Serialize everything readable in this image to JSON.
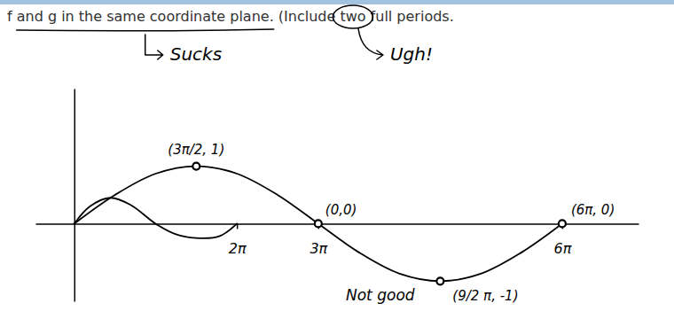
{
  "chart_data": {
    "type": "line",
    "title": "f and g in the same coordinate plane. (Include two full periods.",
    "xlim": [
      -1.5,
      21.8
    ],
    "ylim": [
      -1.35,
      2.35
    ],
    "xticks": [
      {
        "value": 6.283,
        "label": "2π"
      },
      {
        "value": 9.425,
        "label": "3π"
      },
      {
        "value": 18.85,
        "label": "6π"
      }
    ],
    "yticks": [],
    "tick_labels": "x",
    "grid": false,
    "series": [
      {
        "type": "line",
        "color": "#000000",
        "line_style": "solid",
        "x": [
          0,
          1.571,
          3.142,
          4.712,
          6.283,
          7.854,
          9.425,
          10.996,
          12.566,
          14.137,
          15.708,
          17.279,
          18.85
        ],
        "values": [
          0,
          0.5,
          0.87,
          1,
          0.87,
          0.5,
          0,
          -0.5,
          -0.87,
          -1,
          -0.87,
          -0.5,
          0
        ]
      },
      {
        "type": "line",
        "color": "#000000",
        "line_style": "solid",
        "x": [
          0,
          0.6,
          1.4,
          2.2,
          3.14,
          3.9,
          4.7,
          5.6,
          6.283
        ],
        "values": [
          0,
          0.3,
          0.45,
          0.32,
          0,
          -0.18,
          -0.25,
          -0.22,
          0
        ]
      },
      {
        "type": "scatter",
        "color": "#000000",
        "marker": "circle",
        "x": [
          4.712,
          9.425,
          14.137,
          18.85
        ],
        "values": [
          1,
          0,
          -1,
          0
        ]
      }
    ],
    "annotations": [
      {
        "text": "Sucks"
      },
      {
        "text": "Ugh!"
      },
      {
        "text": "Not good"
      },
      {
        "text": "(3π/2, 1)",
        "x": 4.712,
        "y": 1
      },
      {
        "text": "(0,0)",
        "x": 9.425,
        "y": 0
      },
      {
        "text": "(9/2 π, -1)",
        "x": 14.137,
        "y": -1
      },
      {
        "text": "(6π, 0)",
        "x": 18.85,
        "y": 0
      }
    ]
  }
}
